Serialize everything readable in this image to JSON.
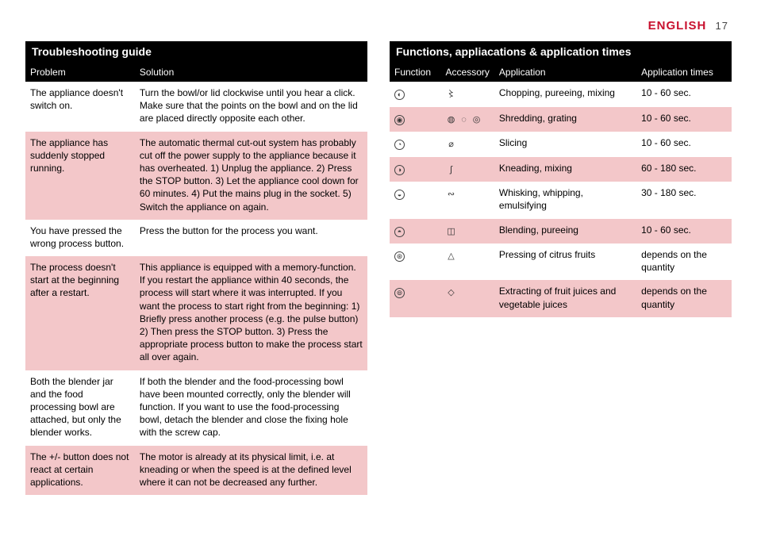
{
  "header": {
    "language": "English",
    "page_number": "17",
    "lang_color": "#c8102e"
  },
  "colors": {
    "row_alt_bg": "#f3c7c9",
    "bar_bg": "#000000",
    "bar_fg": "#ffffff",
    "page_bg": "#ffffff"
  },
  "troubleshooting": {
    "title": "Troubleshooting guide",
    "columns": [
      "Problem",
      "Solution"
    ],
    "rows": [
      {
        "problem": "The appliance doesn't switch on.",
        "solution": "Turn the bowl/or lid clockwise until you hear a click. Make sure that the points on the bowl and on the lid are placed directly opposite each other."
      },
      {
        "problem": "The appliance has suddenly stopped running.",
        "solution": "The automatic thermal cut-out system has probably cut off the power supply to the appliance because it has overheated. 1) Unplug the appliance. 2) Press the STOP button. 3) Let the appliance cool down for 60 minutes. 4) Put the mains plug in the socket. 5) Switch the appliance on again."
      },
      {
        "problem": "You have pressed the wrong process button.",
        "solution": "Press the button for the process you want."
      },
      {
        "problem": "The process doesn't start at the beginning after a restart.",
        "solution": "This appliance is equipped with a memory-function. If you restart the appliance within 40 seconds, the process will start where it was interrupted. If you want the process to start right from the beginning: 1) Briefly press another process (e.g. the pulse button) 2) Then press the STOP button. 3) Press the appropriate process button to make the process start all over again."
      },
      {
        "problem": "Both the blender jar and the food processing bowl are attached, but only the blender works.",
        "solution": "If both the blender and the food-processing bowl have been mounted correctly, only the blender will function. If you want to use the food-processing bowl, detach the blender and close the fixing hole with the screw cap."
      },
      {
        "problem": "The +/- button does not react at certain applications.",
        "solution": "The motor is already at its physical limit, i.e. at kneading or when the speed is at the defined level where it can not be decreased any further."
      }
    ]
  },
  "functions": {
    "title": "Functions, appliacations & application times",
    "columns": [
      "Function",
      "Accessory",
      "Application",
      "Application times"
    ],
    "rows": [
      {
        "func_icon": "chop-icon",
        "acc_icons": [
          "blade-icon"
        ],
        "application": "Chopping, pureeing, mixing",
        "time": "10 - 60 sec."
      },
      {
        "func_icon": "shred-icon",
        "acc_icons": [
          "disc-a-icon",
          "disc-b-icon",
          "disc-c-icon"
        ],
        "application": "Shredding, grating",
        "time": "10 - 60 sec."
      },
      {
        "func_icon": "slice-icon",
        "acc_icons": [
          "slicer-icon"
        ],
        "application": "Slicing",
        "time": "10 - 60 sec."
      },
      {
        "func_icon": "knead-icon",
        "acc_icons": [
          "hook-icon"
        ],
        "application": "Kneading, mixing",
        "time": "60 - 180 sec."
      },
      {
        "func_icon": "whisk-icon",
        "acc_icons": [
          "balloon-icon"
        ],
        "application": "Whisking, whipping, emulsifying",
        "time": "30 - 180 sec."
      },
      {
        "func_icon": "blend-icon",
        "acc_icons": [
          "jar-icon"
        ],
        "application": "Blending, pureeing",
        "time": "10 - 60 sec."
      },
      {
        "func_icon": "citrus-icon",
        "acc_icons": [
          "cone-icon"
        ],
        "application": "Pressing of citrus fruits",
        "time": "depends on the quantity"
      },
      {
        "func_icon": "juice-icon",
        "acc_icons": [
          "juicer-icon"
        ],
        "application": "Extracting of fruit juices and vegetable juices",
        "time": "depends on the quantity"
      }
    ]
  }
}
